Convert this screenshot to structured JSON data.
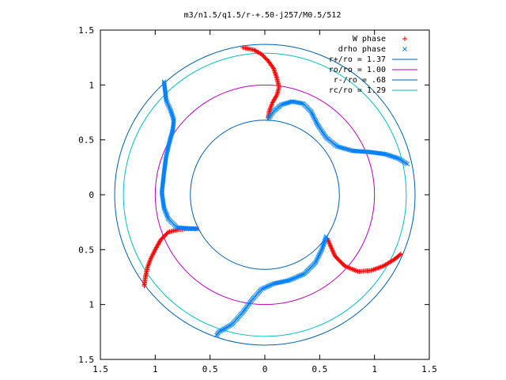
{
  "chart_data": {
    "type": "scatter",
    "title": "m3/n1.5/q1.5/r-+.50-j257/M0.5/512",
    "xlabel": "",
    "ylabel": "",
    "xlim": [
      -1.5,
      1.5
    ],
    "ylim": [
      -1.5,
      1.5
    ],
    "x_ticks": [
      -1.5,
      -1,
      -0.5,
      0,
      0.5,
      1,
      1.5
    ],
    "y_ticks": [
      -1.5,
      -1,
      -0.5,
      0,
      0.5,
      1,
      1.5
    ],
    "x_tick_labels": [
      "1.5",
      "1",
      "0.5",
      "0",
      "0.5",
      "1",
      "1.5"
    ],
    "y_tick_labels": [
      "1.5",
      "1",
      "0.5",
      "0",
      "0.5",
      "1",
      "1.5"
    ],
    "grid": false,
    "legend_position": "top-right",
    "series": [
      {
        "name": "W phase",
        "marker": "+",
        "color": "#ff0000",
        "points": [
          [
            -0.2,
            1.34
          ],
          [
            -0.1,
            1.32
          ],
          [
            -0.03,
            1.28
          ],
          [
            0.03,
            1.22
          ],
          [
            0.08,
            1.15
          ],
          [
            0.11,
            1.06
          ],
          [
            0.13,
            0.98
          ],
          [
            0.11,
            0.91
          ],
          [
            0.07,
            0.84
          ],
          [
            0.04,
            0.76
          ],
          [
            0.03,
            0.7
          ],
          [
            -0.62,
            -0.31
          ],
          [
            -0.72,
            -0.31
          ],
          [
            -0.8,
            -0.32
          ],
          [
            -0.88,
            -0.34
          ],
          [
            -0.95,
            -0.41
          ],
          [
            -1.0,
            -0.5
          ],
          [
            -1.04,
            -0.58
          ],
          [
            -1.07,
            -0.66
          ],
          [
            -1.09,
            -0.75
          ],
          [
            -1.1,
            -0.83
          ],
          [
            0.57,
            -0.4
          ],
          [
            0.64,
            -0.56
          ],
          [
            0.73,
            -0.65
          ],
          [
            0.85,
            -0.7
          ],
          [
            0.97,
            -0.69
          ],
          [
            1.08,
            -0.65
          ],
          [
            1.18,
            -0.59
          ],
          [
            1.24,
            -0.54
          ]
        ]
      },
      {
        "name": "drho phase",
        "marker": "x",
        "color": "#0080ff",
        "points": [
          [
            0.03,
            0.69
          ],
          [
            0.08,
            0.76
          ],
          [
            0.15,
            0.82
          ],
          [
            0.25,
            0.85
          ],
          [
            0.35,
            0.83
          ],
          [
            0.42,
            0.76
          ],
          [
            0.48,
            0.64
          ],
          [
            0.56,
            0.52
          ],
          [
            0.66,
            0.44
          ],
          [
            0.8,
            0.4
          ],
          [
            0.95,
            0.39
          ],
          [
            1.1,
            0.37
          ],
          [
            1.22,
            0.33
          ],
          [
            1.3,
            0.28
          ],
          [
            -0.92,
            1.03
          ],
          [
            -0.91,
            0.95
          ],
          [
            -0.9,
            0.86
          ],
          [
            -0.86,
            0.77
          ],
          [
            -0.83,
            0.68
          ],
          [
            -0.84,
            0.59
          ],
          [
            -0.87,
            0.48
          ],
          [
            -0.9,
            0.35
          ],
          [
            -0.92,
            0.2
          ],
          [
            -0.94,
            0.02
          ],
          [
            -0.92,
            -0.12
          ],
          [
            -0.88,
            -0.22
          ],
          [
            -0.8,
            -0.3
          ],
          [
            -0.62,
            -0.31
          ],
          [
            0.56,
            -0.38
          ],
          [
            0.52,
            -0.5
          ],
          [
            0.46,
            -0.62
          ],
          [
            0.36,
            -0.72
          ],
          [
            0.22,
            -0.78
          ],
          [
            0.08,
            -0.81
          ],
          [
            -0.03,
            -0.86
          ],
          [
            -0.12,
            -0.96
          ],
          [
            -0.2,
            -1.07
          ],
          [
            -0.3,
            -1.18
          ],
          [
            -0.42,
            -1.25
          ],
          [
            -0.44,
            -1.28
          ]
        ]
      }
    ],
    "circles": [
      {
        "name": "r+/ro = 1.37",
        "radius": 1.37,
        "color": "#0060ad"
      },
      {
        "name": "ro/ro = 1.00",
        "radius": 1.0,
        "color": "#bb00bb"
      },
      {
        "name": "r-/ro = .68",
        "radius": 0.68,
        "color": "#0060ad"
      },
      {
        "name": "rc/ro = 1.29",
        "radius": 1.29,
        "color": "#00c0c0"
      }
    ],
    "legend": [
      {
        "label": "W phase",
        "marker": "+",
        "color": "#ff0000"
      },
      {
        "label": "drho phase",
        "marker": "x",
        "color": "#0080ff"
      },
      {
        "label": "r+/ro = 1.37",
        "color": "#0060ad"
      },
      {
        "label": "ro/ro = 1.00",
        "color": "#bb00bb"
      },
      {
        "label": "r-/ro = .68",
        "color": "#0060ad"
      },
      {
        "label": "rc/ro = 1.29",
        "color": "#00c0c0"
      }
    ]
  }
}
